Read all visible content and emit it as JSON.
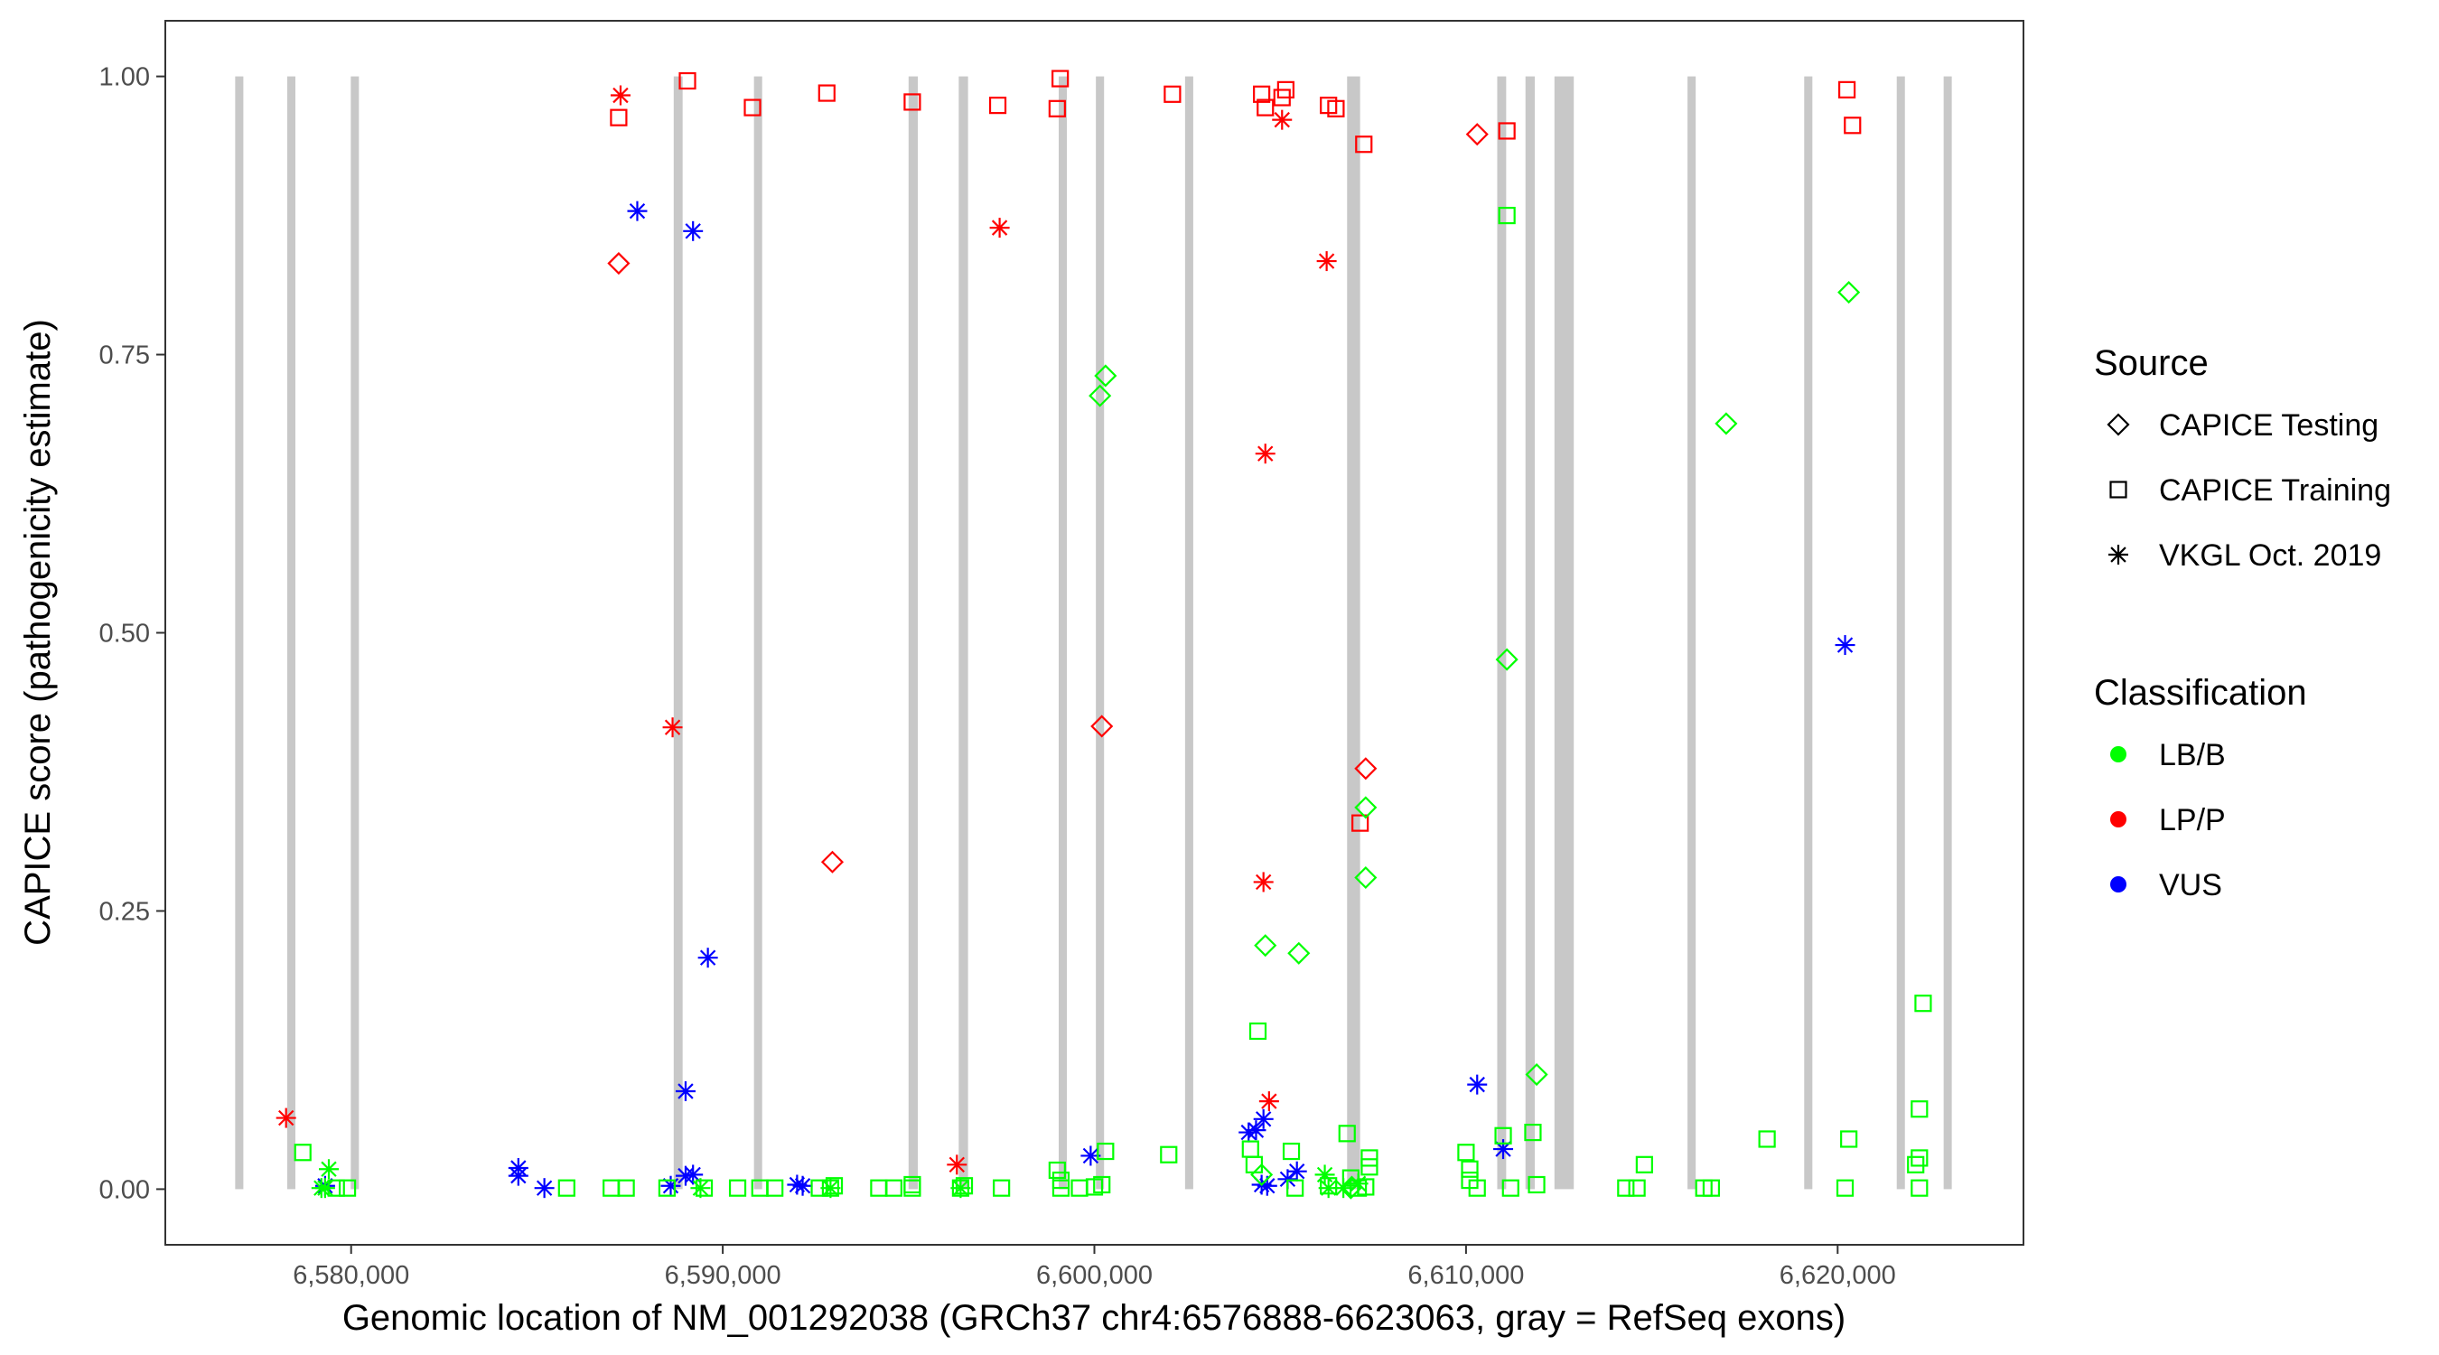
{
  "chart_data": {
    "type": "scatter",
    "xlabel": "Genomic location of NM_001292038 (GRCh37 chr4:6576888-6623063, gray = RefSeq exons)",
    "ylabel": "CAPICE score (pathogenicity estimate)",
    "xlim": [
      6575000,
      6625000
    ],
    "ylim": [
      -0.05,
      1.05
    ],
    "x_ticks": [
      6580000,
      6590000,
      6600000,
      6610000,
      6620000
    ],
    "x_tick_labels": [
      "6,580,000",
      "6,590,000",
      "6,600,000",
      "6,610,000",
      "6,620,000"
    ],
    "y_ticks": [
      0,
      0.25,
      0.5,
      0.75,
      1.0
    ],
    "y_tick_labels": [
      "0.00",
      "0.25",
      "0.50",
      "0.75",
      "1.00"
    ],
    "grid": false,
    "legend_position": "right",
    "exons": [
      [
        6576880,
        6577100
      ],
      [
        6578280,
        6578500
      ],
      [
        6580000,
        6580200
      ],
      [
        6588680,
        6588920
      ],
      [
        6590840,
        6591060
      ],
      [
        6595000,
        6595250
      ],
      [
        6596350,
        6596600
      ],
      [
        6599040,
        6599260
      ],
      [
        6600040,
        6600260
      ],
      [
        6602440,
        6602660
      ],
      [
        6606800,
        6607150
      ],
      [
        6610840,
        6611080
      ],
      [
        6611600,
        6611850
      ],
      [
        6612380,
        6612900
      ],
      [
        6615960,
        6616180
      ],
      [
        6619100,
        6619320
      ],
      [
        6621600,
        6621800
      ],
      [
        6622860,
        6623063
      ]
    ],
    "exon_range": [
      0,
      1
    ],
    "exon_color": "#c8c8c8",
    "legend_shape": {
      "title": "Source",
      "items": [
        {
          "label": "CAPICE Testing",
          "shape": "diamond"
        },
        {
          "label": "CAPICE Training",
          "shape": "square"
        },
        {
          "label": "VKGL Oct. 2019",
          "shape": "asterisk"
        }
      ]
    },
    "legend_color": {
      "title": "Classification",
      "items": [
        {
          "label": "LB/B",
          "color": "#00ff00"
        },
        {
          "label": "LP/P",
          "color": "#ff0000"
        },
        {
          "label": "VUS",
          "color": "#0000ff"
        }
      ]
    },
    "series": [
      {
        "source": "CAPICE Training",
        "classification": "LP/P",
        "points": [
          [
            6587200,
            0.963
          ],
          [
            6589050,
            0.996
          ],
          [
            6590800,
            0.972
          ],
          [
            6592800,
            0.985
          ],
          [
            6595100,
            0.977
          ],
          [
            6597400,
            0.974
          ],
          [
            6599000,
            0.971
          ],
          [
            6599080,
            0.998
          ],
          [
            6602100,
            0.984
          ],
          [
            6604500,
            0.984
          ],
          [
            6604600,
            0.972
          ],
          [
            6605050,
            0.981
          ],
          [
            6605150,
            0.988
          ],
          [
            6606300,
            0.974
          ],
          [
            6606500,
            0.971
          ],
          [
            6607150,
            0.329
          ],
          [
            6607250,
            0.939
          ],
          [
            6611100,
            0.951
          ],
          [
            6620250,
            0.988
          ],
          [
            6620400,
            0.956
          ]
        ]
      },
      {
        "source": "CAPICE Testing",
        "classification": "LP/P",
        "points": [
          [
            6587200,
            0.832
          ],
          [
            6592950,
            0.294
          ],
          [
            6600200,
            0.416
          ],
          [
            6607300,
            0.378
          ],
          [
            6610300,
            0.948
          ]
        ]
      },
      {
        "source": "VKGL Oct. 2019",
        "classification": "LP/P",
        "points": [
          [
            6578250,
            0.064
          ],
          [
            6587250,
            0.983
          ],
          [
            6588650,
            0.415
          ],
          [
            6596300,
            0.022
          ],
          [
            6597450,
            0.864
          ],
          [
            6604600,
            0.661
          ],
          [
            6604550,
            0.276
          ],
          [
            6604700,
            0.079
          ],
          [
            6605050,
            0.961
          ],
          [
            6606250,
            0.834
          ]
        ]
      },
      {
        "source": "VKGL Oct. 2019",
        "classification": "VUS",
        "points": [
          [
            6579300,
            0.003
          ],
          [
            6584500,
            0.019
          ],
          [
            6584500,
            0.012
          ],
          [
            6585200,
            0.001
          ],
          [
            6587700,
            0.879
          ],
          [
            6588600,
            0.003
          ],
          [
            6589000,
            0.012
          ],
          [
            6589200,
            0.013
          ],
          [
            6589000,
            0.088
          ],
          [
            6589200,
            0.861
          ],
          [
            6589600,
            0.208
          ],
          [
            6592000,
            0.004
          ],
          [
            6592150,
            0.003
          ],
          [
            6599900,
            0.03
          ],
          [
            6604150,
            0.051
          ],
          [
            6604350,
            0.053
          ],
          [
            6604550,
            0.063
          ],
          [
            6604500,
            0.004
          ],
          [
            6604650,
            0.003
          ],
          [
            6605200,
            0.009
          ],
          [
            6605450,
            0.016
          ],
          [
            6610300,
            0.094
          ],
          [
            6611000,
            0.036
          ],
          [
            6620200,
            0.489
          ]
        ]
      },
      {
        "source": "CAPICE Training",
        "classification": "LB/B",
        "points": [
          [
            6578700,
            0.033
          ],
          [
            6579600,
            0.001
          ],
          [
            6579900,
            0.001
          ],
          [
            6585800,
            0.001
          ],
          [
            6587000,
            0.001
          ],
          [
            6587400,
            0.001
          ],
          [
            6588500,
            0.001
          ],
          [
            6589500,
            0.001
          ],
          [
            6590400,
            0.001
          ],
          [
            6591000,
            0.001
          ],
          [
            6591400,
            0.001
          ],
          [
            6592600,
            0.001
          ],
          [
            6592900,
            0.001
          ],
          [
            6593000,
            0.003
          ],
          [
            6594200,
            0.001
          ],
          [
            6594600,
            0.001
          ],
          [
            6595100,
            0.001
          ],
          [
            6595100,
            0.004
          ],
          [
            6596400,
            0.001
          ],
          [
            6596500,
            0.003
          ],
          [
            6597500,
            0.001
          ],
          [
            6599000,
            0.017
          ],
          [
            6599100,
            0.008
          ],
          [
            6599100,
            0.001
          ],
          [
            6599600,
            0.001
          ],
          [
            6600000,
            0.002
          ],
          [
            6600200,
            0.004
          ],
          [
            6600300,
            0.034
          ],
          [
            6602000,
            0.031
          ],
          [
            6604200,
            0.036
          ],
          [
            6604300,
            0.022
          ],
          [
            6604400,
            0.142
          ],
          [
            6605300,
            0.034
          ],
          [
            6605400,
            0.001
          ],
          [
            6606300,
            0.003
          ],
          [
            6606800,
            0.05
          ],
          [
            6606900,
            0.01
          ],
          [
            6607100,
            0.001
          ],
          [
            6607300,
            0.002
          ],
          [
            6607400,
            0.028
          ],
          [
            6607400,
            0.02
          ],
          [
            6610000,
            0.033
          ],
          [
            6610100,
            0.018
          ],
          [
            6610100,
            0.008
          ],
          [
            6610300,
            0.001
          ],
          [
            6611000,
            0.048
          ],
          [
            6611200,
            0.001
          ],
          [
            6611800,
            0.051
          ],
          [
            6611900,
            0.004
          ],
          [
            6614300,
            0.001
          ],
          [
            6614600,
            0.001
          ],
          [
            6614800,
            0.022
          ],
          [
            6616400,
            0.001
          ],
          [
            6616600,
            0.001
          ],
          [
            6618100,
            0.045
          ],
          [
            6620200,
            0.001
          ],
          [
            6620300,
            0.045
          ],
          [
            6622100,
            0.022
          ],
          [
            6622200,
            0.028
          ],
          [
            6622200,
            0.072
          ],
          [
            6622300,
            0.167
          ],
          [
            6622200,
            0.001
          ],
          [
            6611100,
            0.875
          ]
        ]
      },
      {
        "source": "CAPICE Testing",
        "classification": "LB/B",
        "points": [
          [
            6600150,
            0.713
          ],
          [
            6600300,
            0.731
          ],
          [
            6604600,
            0.219
          ],
          [
            6605500,
            0.212
          ],
          [
            6607300,
            0.343
          ],
          [
            6607300,
            0.28
          ],
          [
            6611100,
            0.476
          ],
          [
            6611900,
            0.103
          ],
          [
            6617000,
            0.688
          ],
          [
            6620300,
            0.806
          ],
          [
            6604500,
            0.013
          ],
          [
            6606900,
            0.001
          ]
        ]
      },
      {
        "source": "VKGL Oct. 2019",
        "classification": "LB/B",
        "points": [
          [
            6579200,
            0.001
          ],
          [
            6579400,
            0.018
          ],
          [
            6579300,
            0.001
          ],
          [
            6589400,
            0.001
          ],
          [
            6592900,
            0.001
          ],
          [
            6596400,
            0.001
          ],
          [
            6606200,
            0.013
          ],
          [
            6606300,
            0.001
          ],
          [
            6606700,
            0.001
          ],
          [
            6607100,
            0.005
          ]
        ]
      }
    ]
  }
}
